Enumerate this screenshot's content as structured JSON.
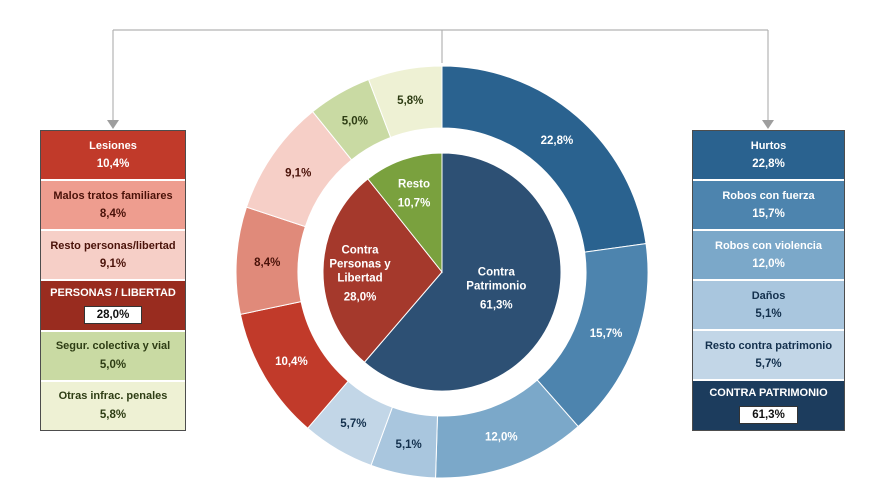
{
  "chart_data": {
    "type": "pie",
    "subtype": "two-level-donut",
    "title": "",
    "legend_position": "side-panels",
    "inner_ring": {
      "segments": [
        {
          "name": "Contra Patrimonio",
          "label_lines": [
            "Contra",
            "Patrimonio"
          ],
          "value": 61.3,
          "value_label": "61,3%",
          "color": "#2d5074",
          "text_color": "#ffffff",
          "label_angle": 104,
          "label_radius": 56
        },
        {
          "name": "Contra Personas y Libertad",
          "label_lines": [
            "Contra",
            "Personas y",
            "Libertad"
          ],
          "value": 28.0,
          "value_label": "28,0%",
          "color": "#a5392c",
          "text_color": "#ffffff",
          "label_angle": 271,
          "label_radius": 82
        },
        {
          "name": "Resto",
          "label_lines": [
            "Resto"
          ],
          "value": 10.7,
          "value_label": "10,7%",
          "color": "#7aa13e",
          "text_color": "#ffffff",
          "label_angle": 341,
          "label_radius": 86
        }
      ]
    },
    "outer_ring": {
      "segments": [
        {
          "name": "Hurtos",
          "value": 22.8,
          "value_label": "22,8%",
          "color": "#2a628f",
          "text_color": "#ffffff"
        },
        {
          "name": "Robos con fuerza",
          "value": 15.7,
          "value_label": "15,7%",
          "color": "#4d84ae",
          "text_color": "#ffffff"
        },
        {
          "name": "Robos con violencia",
          "value": 12.0,
          "value_label": "12,0%",
          "color": "#7ba8c9",
          "text_color": "#ffffff"
        },
        {
          "name": "Daños",
          "value": 5.1,
          "value_label": "5,1%",
          "color": "#a9c6de",
          "text_color": "#13304d"
        },
        {
          "name": "Resto contra patrimonio",
          "value": 5.7,
          "value_label": "5,7%",
          "color": "#c2d6e7",
          "text_color": "#13304d"
        },
        {
          "name": "Lesiones",
          "value": 10.4,
          "value_label": "10,4%",
          "color": "#c13a2a",
          "text_color": "#ffffff"
        },
        {
          "name": "Malos tratos familiares",
          "value": 8.4,
          "value_label": "8,4%",
          "color": "#e08a7a",
          "text_color": "#4a1209"
        },
        {
          "name": "Resto personas/libertad",
          "value": 9.1,
          "value_label": "9,1%",
          "color": "#f6cfc7",
          "text_color": "#4a1209"
        },
        {
          "name": "Segur. colectiva y vial",
          "value": 5.0,
          "value_label": "5,0%",
          "color": "#c9daa3",
          "text_color": "#2e3d14"
        },
        {
          "name": "Otras infrac. penales",
          "value": 5.8,
          "value_label": "5,8%",
          "color": "#eef1d4",
          "text_color": "#2e3d14"
        }
      ]
    }
  },
  "left_panel": {
    "rows": [
      {
        "type": "item",
        "label": "Lesiones",
        "value": "10,4%",
        "bg": "#c13a2a",
        "fg": "#ffffff"
      },
      {
        "type": "item",
        "label": "Malos tratos familiares",
        "value": "8,4%",
        "bg": "#ee9d8f",
        "fg": "#4a1209"
      },
      {
        "type": "item",
        "label": "Resto personas/libertad",
        "value": "9,1%",
        "bg": "#f6cfc7",
        "fg": "#4a1209"
      },
      {
        "type": "total",
        "label": "PERSONAS / LIBERTAD",
        "value": "28,0%",
        "bg": "#992c1f",
        "fg": "#ffffff"
      },
      {
        "type": "item",
        "label": "Segur. colectiva y vial",
        "value": "5,0%",
        "bg": "#c9daa3",
        "fg": "#2e3d14"
      },
      {
        "type": "item",
        "label": "Otras infrac. penales",
        "value": "5,8%",
        "bg": "#eef1d4",
        "fg": "#2e3d14"
      }
    ]
  },
  "right_panel": {
    "rows": [
      {
        "type": "item",
        "label": "Hurtos",
        "value": "22,8%",
        "bg": "#2a628f",
        "fg": "#ffffff"
      },
      {
        "type": "item",
        "label": "Robos con fuerza",
        "value": "15,7%",
        "bg": "#4d84ae",
        "fg": "#ffffff"
      },
      {
        "type": "item",
        "label": "Robos con violencia",
        "value": "12,0%",
        "bg": "#7ba8c9",
        "fg": "#ffffff"
      },
      {
        "type": "item",
        "label": "Daños",
        "value": "5,1%",
        "bg": "#a9c6de",
        "fg": "#13304d"
      },
      {
        "type": "item",
        "label": "Resto contra patrimonio",
        "value": "5,7%",
        "bg": "#c2d6e7",
        "fg": "#13304d"
      },
      {
        "type": "total",
        "label": "CONTRA PATRIMONIO",
        "value": "61,3%",
        "bg": "#1c3c5d",
        "fg": "#ffffff"
      }
    ]
  },
  "connectors": {
    "line_color": "#b3b3b3",
    "arrow_color": "#9e9e9e"
  }
}
